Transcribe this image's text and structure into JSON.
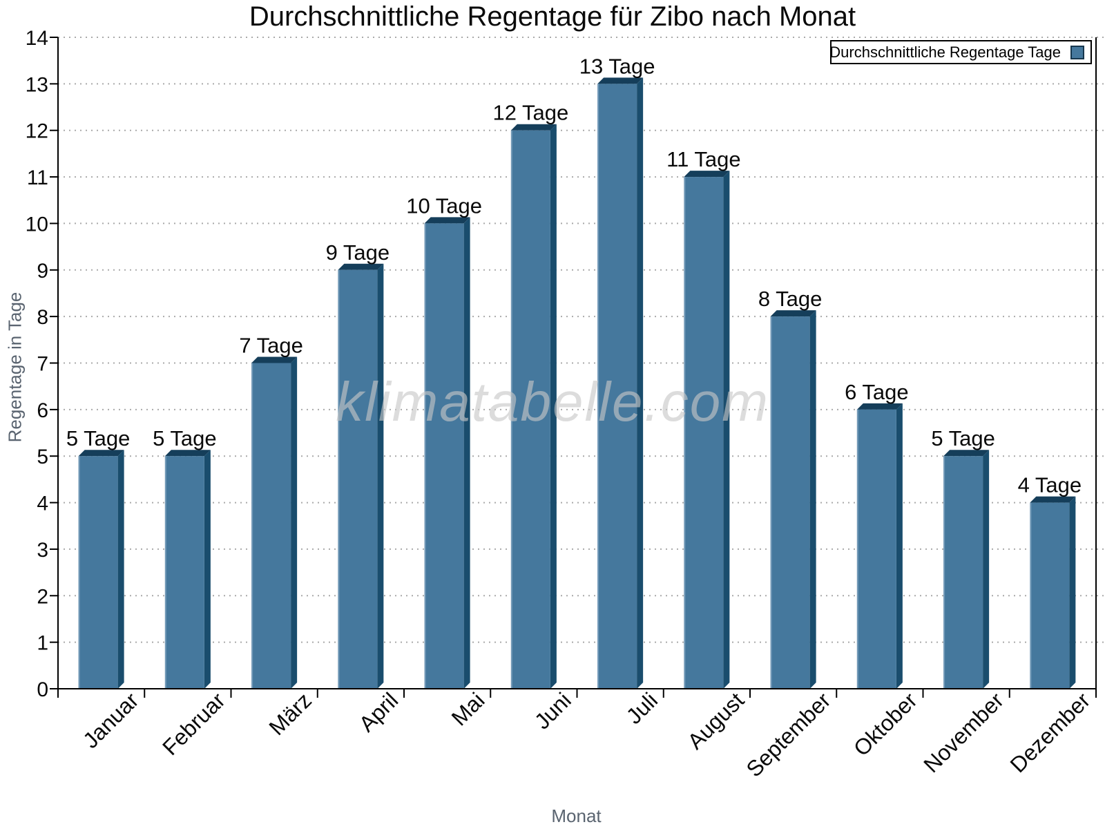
{
  "title": "Durchschnittliche Regentage für Zibo nach Monat",
  "watermark": "klimatabelle.com",
  "legend": {
    "label": "Durchschnittliche Regentage Tage"
  },
  "axes": {
    "x_label": "Monat",
    "y_label": "Regentage in Tage"
  },
  "chart_data": {
    "type": "bar",
    "title": "Durchschnittliche Regentage für Zibo nach Monat",
    "categories": [
      "Januar",
      "Februar",
      "März",
      "April",
      "Mai",
      "Juni",
      "Juli",
      "August",
      "September",
      "Oktober",
      "November",
      "Dezember"
    ],
    "values": [
      5,
      5,
      7,
      9,
      10,
      12,
      13,
      11,
      8,
      6,
      5,
      4
    ],
    "value_label_suffix": "Tage",
    "xlabel": "Monat",
    "ylabel": "Regentage in Tage",
    "ylim": [
      0,
      14
    ],
    "ytick_step": 1,
    "grid": "horizontal-dotted",
    "legend_label": "Durchschnittliche Regentage Tage",
    "legend_position": "top-right",
    "bar_style": "3d-bevel",
    "colors": {
      "bar_face": "#45789D",
      "bar_side": "#1A4D6D",
      "bar_top": "#153E5A",
      "bar_highlight": "#7FA3BF",
      "axis": "#000000",
      "grid": "#A9A9A9",
      "tick_label": "#0A0A0A",
      "axis_title": "#5A6470",
      "watermark": "#C8C8C8"
    }
  }
}
